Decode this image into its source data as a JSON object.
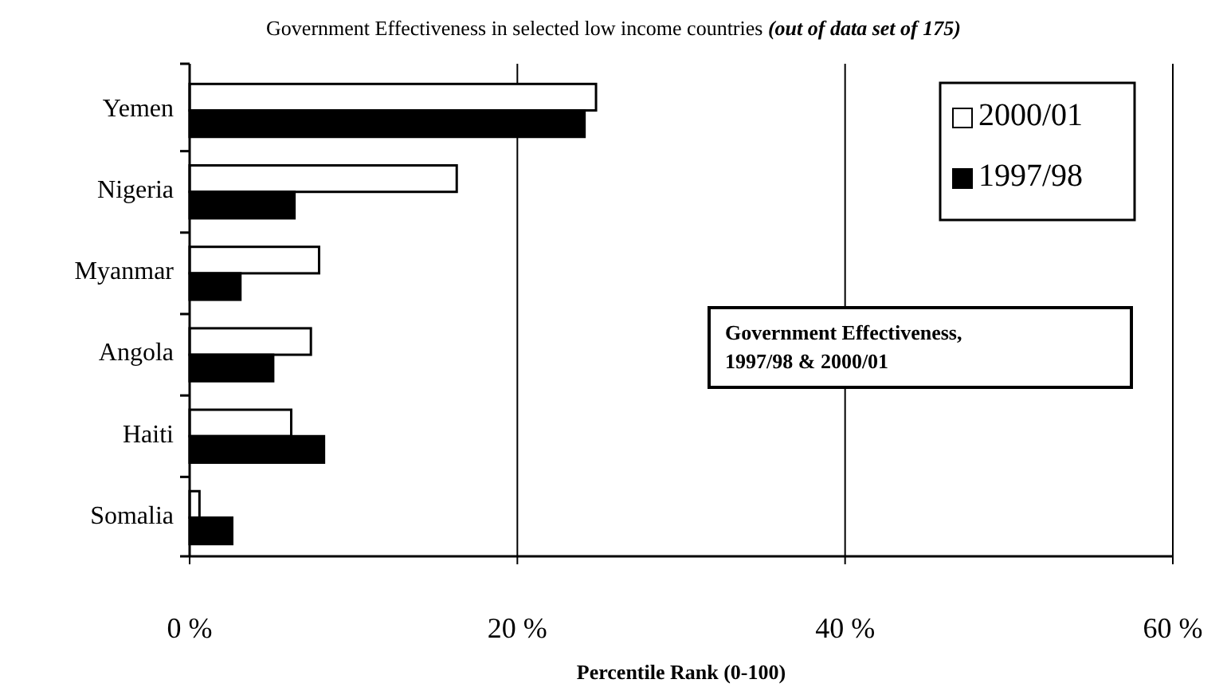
{
  "chart_data": {
    "type": "bar",
    "orientation": "horizontal",
    "title": "Government Effectiveness in selected low income countries",
    "subtitle": "(out of data set of 175)",
    "xlabel": "Percentile Rank (0-100)",
    "categories": [
      "Yemen",
      "Nigeria",
      "Myanmar",
      "Angola",
      "Haiti",
      "Somalia"
    ],
    "series": [
      {
        "name": "2000/01",
        "color": "#ffffff",
        "values": [
          24.8,
          16.3,
          7.9,
          7.4,
          6.2,
          0.6
        ]
      },
      {
        "name": "1997/98",
        "color": "#000000",
        "values": [
          24.1,
          6.4,
          3.1,
          5.1,
          8.2,
          2.6
        ]
      }
    ],
    "xlim": [
      0,
      60
    ],
    "xticks": [
      {
        "value": 0,
        "label": "0 %"
      },
      {
        "value": 20,
        "label": "20 %"
      },
      {
        "value": 40,
        "label": "40 %"
      },
      {
        "value": 60,
        "label": "60 %"
      }
    ],
    "grid": "x",
    "legend": "top right",
    "annotations": [
      "Government Effectiveness,\n1997/98 & 2000/01"
    ]
  }
}
